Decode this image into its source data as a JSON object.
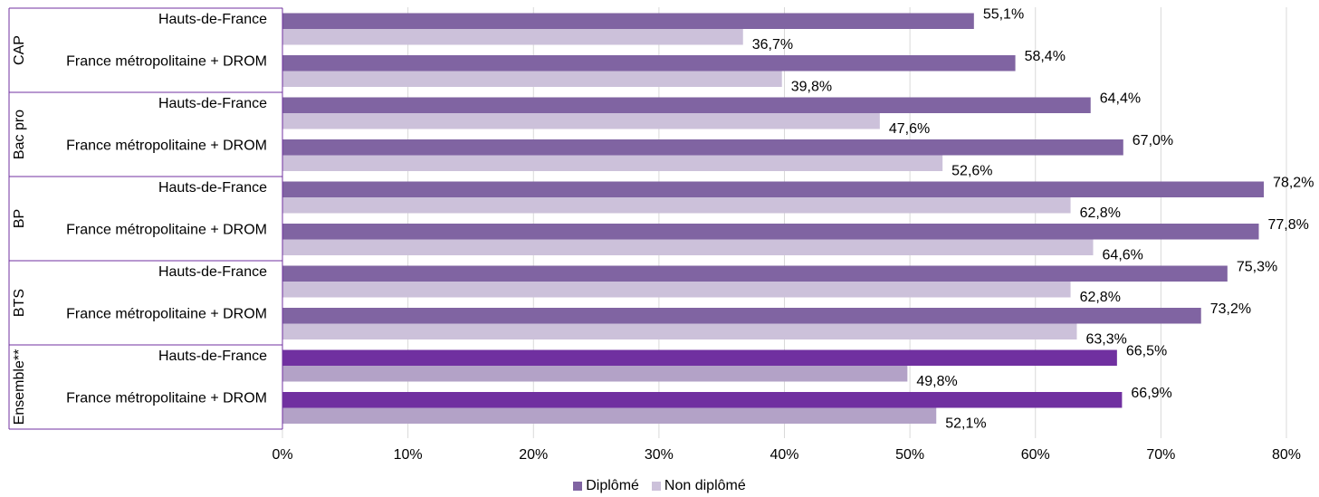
{
  "chart_data": {
    "type": "bar",
    "orientation": "horizontal",
    "title": "",
    "xlabel": "",
    "ylabel": "",
    "xlim": [
      0,
      80
    ],
    "x_ticks": [
      "0%",
      "10%",
      "20%",
      "30%",
      "40%",
      "50%",
      "60%",
      "70%",
      "80%"
    ],
    "grid": "vertical",
    "legend_position": "bottom",
    "groups": [
      {
        "label": "CAP",
        "rows": [
          {
            "label": "Hauts-de-France",
            "diplome": 55.1,
            "diplome_label": "55,1%",
            "non_diplome": 36.7,
            "non_diplome_label": "36,7%"
          },
          {
            "label": "France métropolitaine + DROM",
            "diplome": 58.4,
            "diplome_label": "58,4%",
            "non_diplome": 39.8,
            "non_diplome_label": "39,8%"
          }
        ]
      },
      {
        "label": "Bac pro",
        "rows": [
          {
            "label": "Hauts-de-France",
            "diplome": 64.4,
            "diplome_label": "64,4%",
            "non_diplome": 47.6,
            "non_diplome_label": "47,6%"
          },
          {
            "label": "France métropolitaine + DROM",
            "diplome": 67.0,
            "diplome_label": "67,0%",
            "non_diplome": 52.6,
            "non_diplome_label": "52,6%"
          }
        ]
      },
      {
        "label": "BP",
        "rows": [
          {
            "label": "Hauts-de-France",
            "diplome": 78.2,
            "diplome_label": "78,2%",
            "non_diplome": 62.8,
            "non_diplome_label": "62,8%"
          },
          {
            "label": "France métropolitaine + DROM",
            "diplome": 77.8,
            "diplome_label": "77,8%",
            "non_diplome": 64.6,
            "non_diplome_label": "64,6%"
          }
        ]
      },
      {
        "label": "BTS",
        "rows": [
          {
            "label": "Hauts-de-France",
            "diplome": 75.3,
            "diplome_label": "75,3%",
            "non_diplome": 62.8,
            "non_diplome_label": "62,8%"
          },
          {
            "label": "France métropolitaine + DROM",
            "diplome": 73.2,
            "diplome_label": "73,2%",
            "non_diplome": 63.3,
            "non_diplome_label": "63,3%"
          }
        ]
      },
      {
        "label": "Ensemble**",
        "highlight": true,
        "rows": [
          {
            "label": "Hauts-de-France",
            "diplome": 66.5,
            "diplome_label": "66,5%",
            "non_diplome": 49.8,
            "non_diplome_label": "49,8%"
          },
          {
            "label": "France métropolitaine + DROM",
            "diplome": 66.9,
            "diplome_label": "66,9%",
            "non_diplome": 52.1,
            "non_diplome_label": "52,1%"
          }
        ]
      }
    ],
    "series": [
      {
        "key": "diplome",
        "name": "Diplômé"
      },
      {
        "key": "non_diplome",
        "name": "Non diplômé"
      }
    ],
    "colors": {
      "diplome": "#8064a2",
      "non_diplome": "#ccc1da",
      "diplome_highlight": "#7030a0",
      "non_diplome_highlight": "#b3a2c7",
      "grid": "#d9d9d9",
      "group_border": "#7030a0"
    }
  }
}
